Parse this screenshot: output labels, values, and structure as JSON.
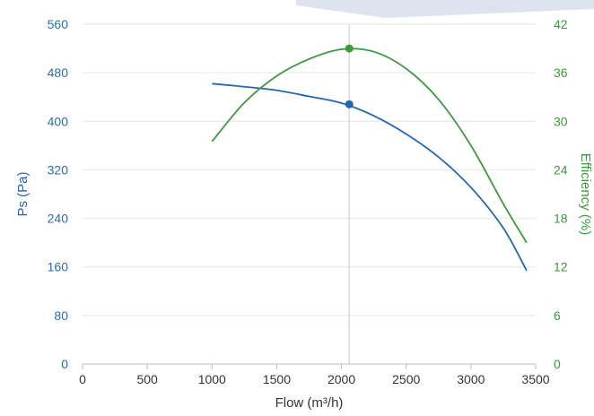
{
  "colors": {
    "pressure": "#2166b3",
    "efficiency": "#3b9a3b",
    "grid": "#e6e6e6",
    "cursor": "#d0d0d0",
    "axis": "#bdbdbd",
    "background_accent": "#dde3ef"
  },
  "chart_data": {
    "type": "line",
    "xlabel": "Flow (m³/h)",
    "ylabel_left": "Ps (Pa)",
    "ylabel_right": "Efficiency (%)",
    "xlim": [
      0,
      3500
    ],
    "ylim_left": [
      0,
      560
    ],
    "ylim_right": [
      0,
      42
    ],
    "x_ticks": [
      "0",
      "500",
      "1000",
      "1500",
      "2000",
      "2500",
      "3000",
      "3500"
    ],
    "y_left_ticks": [
      "0",
      "80",
      "160",
      "240",
      "320",
      "400",
      "480",
      "560"
    ],
    "y_right_ticks": [
      "0",
      "6",
      "12",
      "18",
      "24",
      "30",
      "36",
      "42"
    ],
    "grid": "horizontal",
    "series": [
      {
        "name": "Ps (Pa)",
        "axis": "left",
        "x": [
          1000,
          1250,
          1500,
          1750,
          2000,
          2250,
          2500,
          2750,
          3000,
          3250,
          3430
        ],
        "y": [
          462,
          457,
          451,
          441,
          430,
          409,
          379,
          341,
          291,
          224,
          154
        ]
      },
      {
        "name": "Efficiency (%)",
        "axis": "right",
        "x": [
          1000,
          1250,
          1500,
          1750,
          2000,
          2250,
          2500,
          2750,
          3000,
          3250,
          3430
        ],
        "y": [
          27.5,
          32.3,
          35.6,
          37.7,
          38.9,
          38.6,
          36.5,
          32.7,
          27.0,
          19.8,
          15.0
        ]
      }
    ],
    "marker": {
      "x": 2060,
      "pressure": 428,
      "efficiency": 39.0
    }
  }
}
